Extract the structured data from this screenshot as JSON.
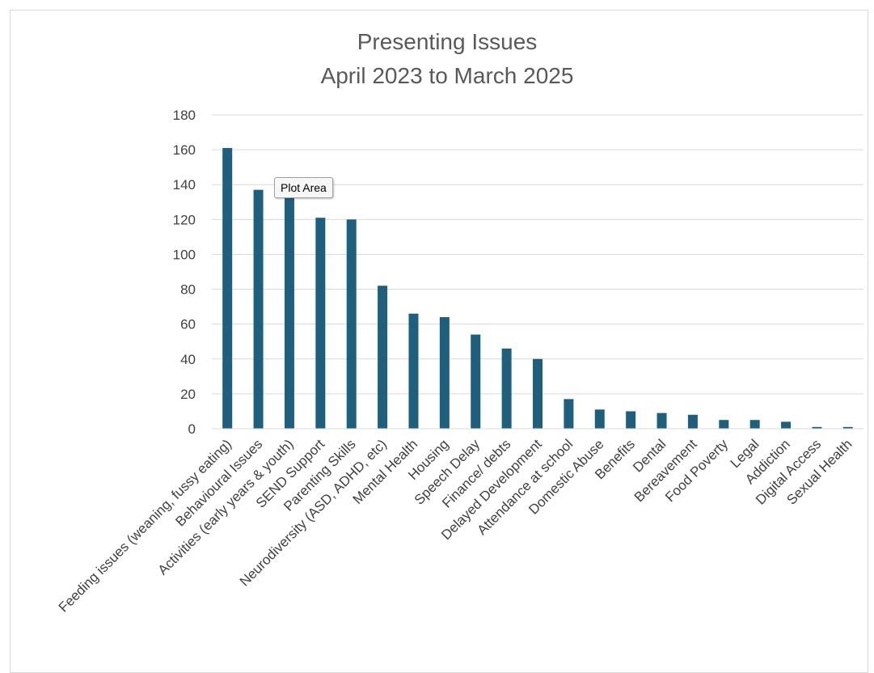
{
  "chart_data": {
    "type": "bar",
    "title": [
      "Presenting Issues",
      "April 2023 to March 2025"
    ],
    "xlabel": "",
    "ylabel": "",
    "ylim": [
      0,
      180
    ],
    "yticks": [
      0,
      20,
      40,
      60,
      80,
      100,
      120,
      140,
      160,
      180
    ],
    "grid": true,
    "legend": "none",
    "bar_color": "#1f5f7e",
    "categories": [
      "Feeding issues (weaning, fussy eating)",
      "Behavioural Issues",
      "Activities (early years & youth)",
      "SEND Support",
      "Parenting Skills",
      "Neurodiversity (ASD, ADHD, etc)",
      "Mental Health",
      "Housing",
      "Speech Delay",
      "Finance/ debts",
      "Delayed Development",
      "Attendance at school",
      "Domestic Abuse",
      "Benefits",
      "Dental",
      "Bereavement",
      "Food Poverty",
      "Legal",
      "Addiction",
      "Digital Access",
      "Sexual Health"
    ],
    "values": [
      161,
      137,
      133,
      121,
      120,
      82,
      66,
      64,
      54,
      46,
      40,
      17,
      11,
      10,
      9,
      8,
      5,
      5,
      4,
      1,
      1
    ]
  },
  "tooltip": {
    "label": "Plot Area"
  }
}
